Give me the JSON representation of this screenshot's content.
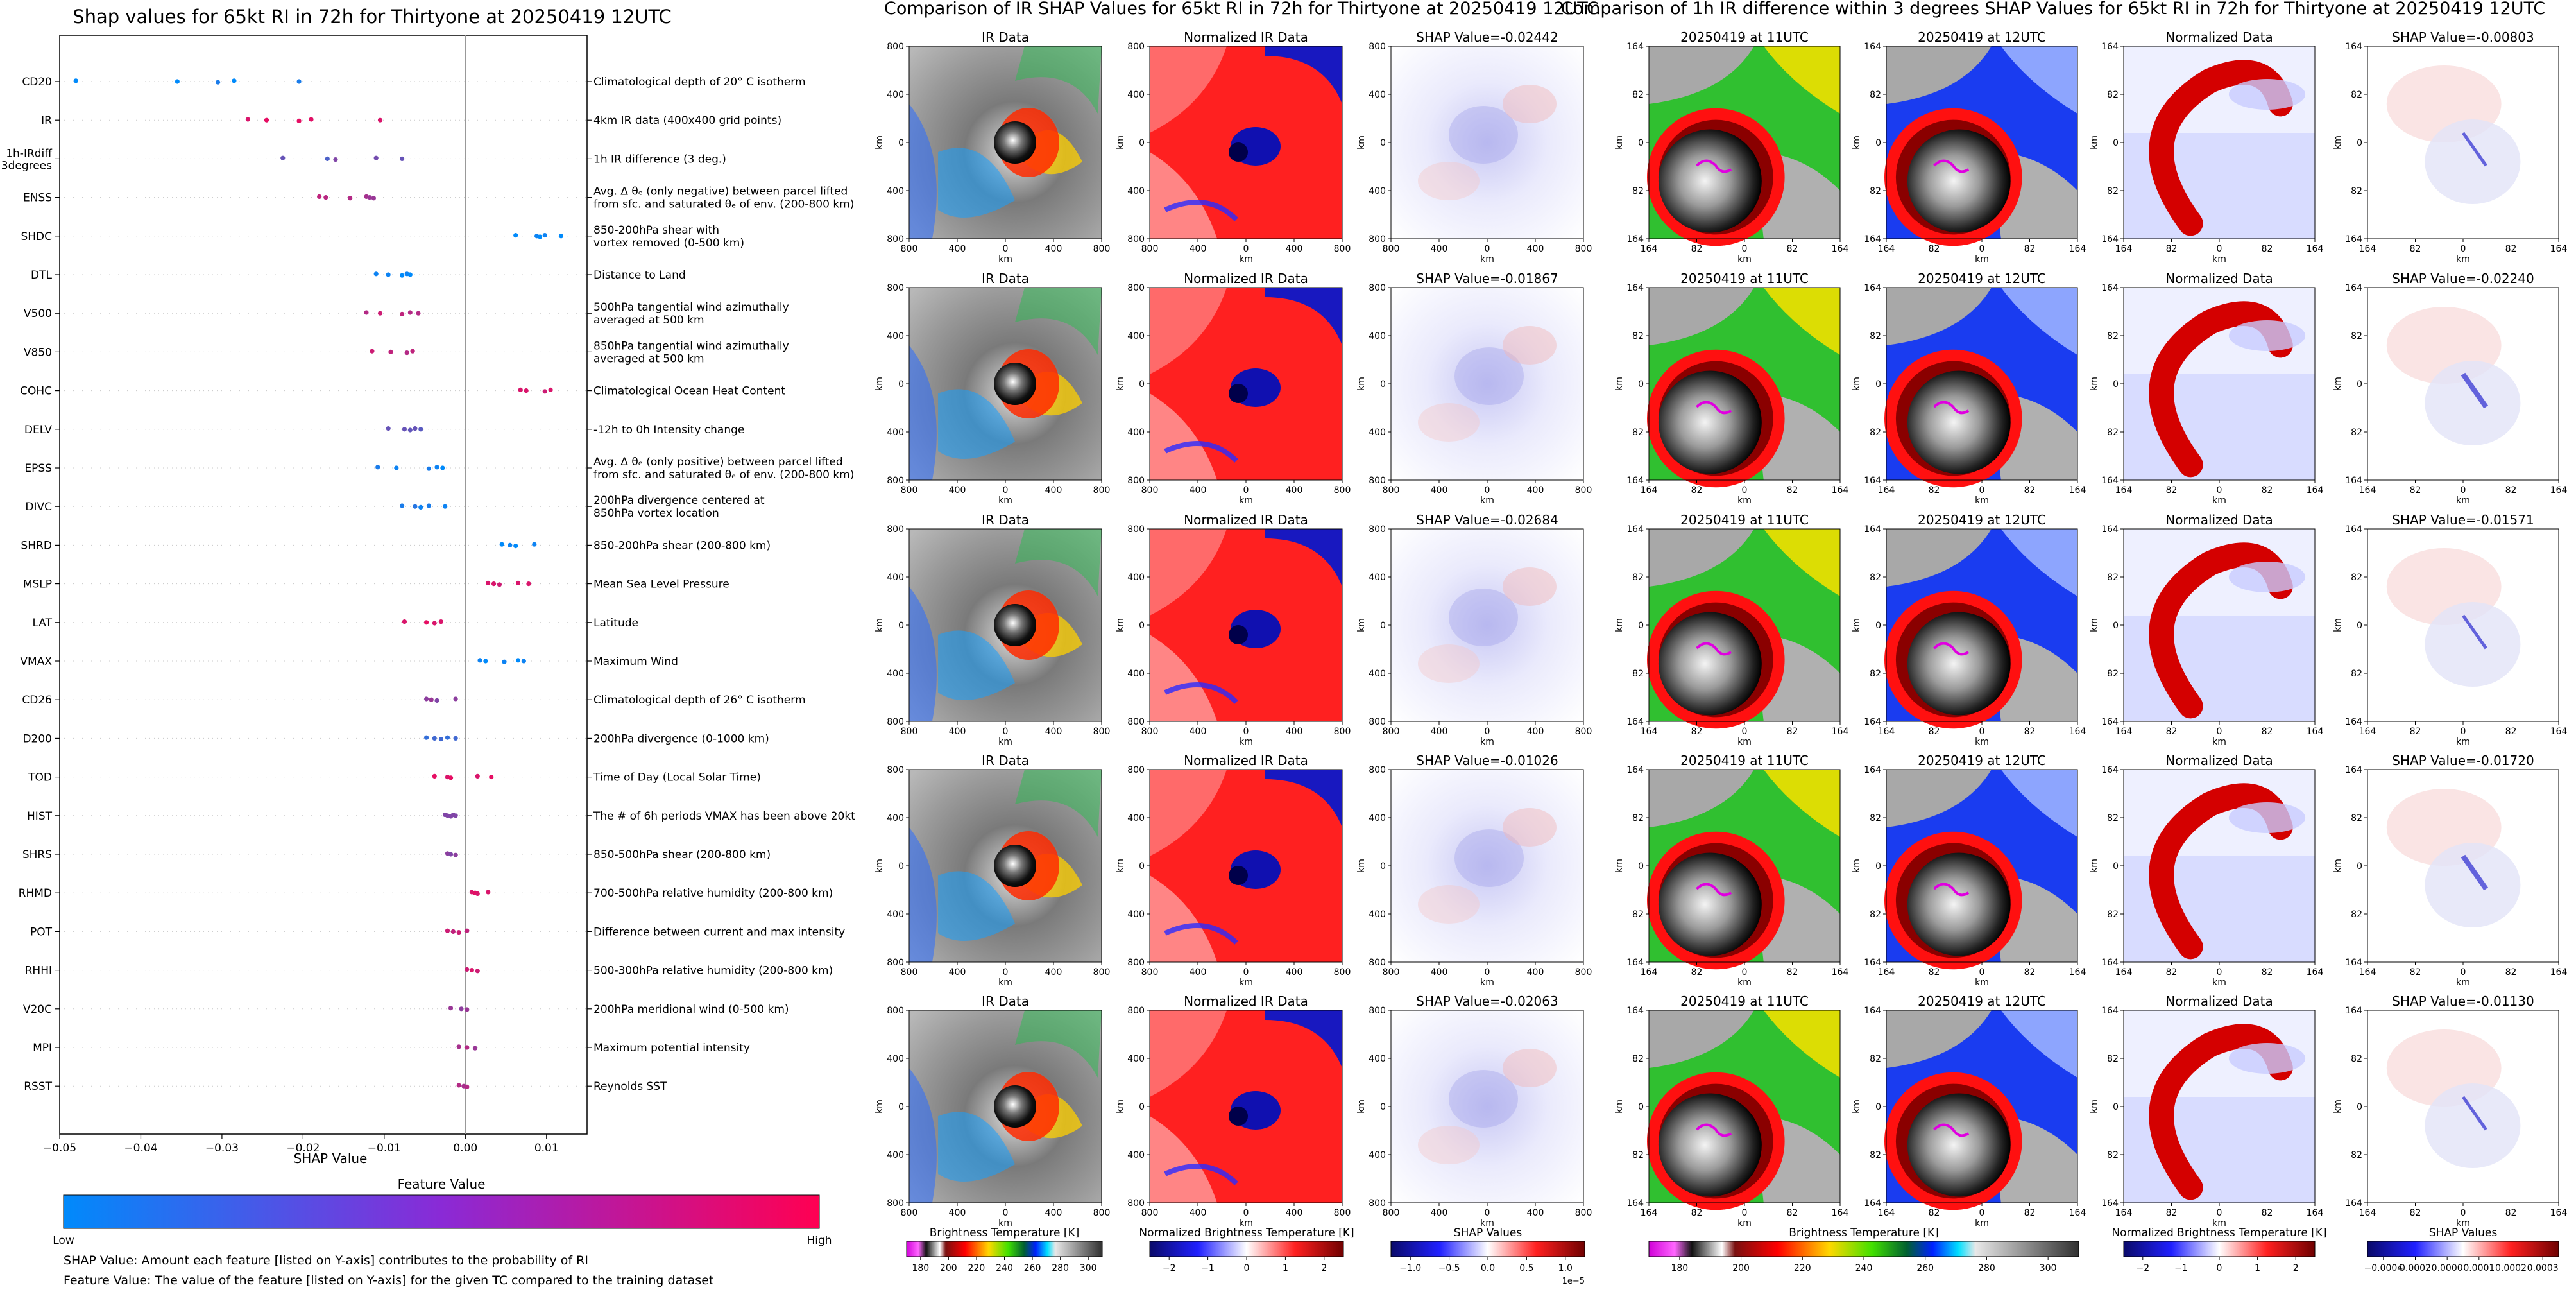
{
  "chart_data": [
    {
      "type": "scatter",
      "title": "Shap values for 65kt RI in 72h for Thirtyone at 20250419 12UTC",
      "xlabel": "SHAP Value",
      "xlim": [
        -0.05,
        0.015
      ],
      "xticks": [
        "−0.05",
        "−0.04",
        "−0.03",
        "−0.02",
        "−0.01",
        "0.00",
        "0.01"
      ],
      "xtick_values": [
        -0.05,
        -0.04,
        -0.03,
        -0.02,
        -0.01,
        0.0,
        0.01
      ],
      "features": [
        {
          "name": "CD20",
          "desc": [
            "Climatological depth of 20° C isotherm"
          ],
          "points": [
            [
              -0.048,
              0.0
            ],
            [
              -0.0355,
              0.0
            ],
            [
              -0.0305,
              0.1
            ],
            [
              -0.0285,
              0.0
            ],
            [
              -0.0205,
              0.1
            ]
          ]
        },
        {
          "name": "IR",
          "desc": [
            "4km IR data (400x400 grid points)"
          ],
          "points": [
            [
              -0.0268,
              0.85
            ],
            [
              -0.0245,
              0.9
            ],
            [
              -0.0205,
              0.9
            ],
            [
              -0.019,
              0.88
            ],
            [
              -0.0105,
              0.85
            ]
          ]
        },
        {
          "name": "1h-IRdiff 3degrees",
          "desc": [
            "1h IR difference (3 deg.)"
          ],
          "points": [
            [
              -0.0225,
              0.4
            ],
            [
              -0.017,
              0.3
            ],
            [
              -0.016,
              0.5
            ],
            [
              -0.011,
              0.45
            ],
            [
              -0.0078,
              0.4
            ]
          ]
        },
        {
          "name": "ENSS",
          "desc": [
            "Avg. Δ θₑ (only negative) between parcel lifted",
            "from sfc. and saturated θₑ of env. (200-800 km)"
          ],
          "points": [
            [
              -0.018,
              0.75
            ],
            [
              -0.0172,
              0.72
            ],
            [
              -0.0142,
              0.7
            ],
            [
              -0.0122,
              0.65
            ],
            [
              -0.0118,
              0.6
            ],
            [
              -0.0113,
              0.6
            ]
          ]
        },
        {
          "name": "SHDC",
          "desc": [
            "850-200hPa shear with",
            "vortex removed (0-500 km)"
          ],
          "points": [
            [
              0.0062,
              0.0
            ],
            [
              0.0088,
              0.05
            ],
            [
              0.0092,
              0.0
            ],
            [
              0.0098,
              0.05
            ],
            [
              0.0118,
              0.0
            ]
          ]
        },
        {
          "name": "DTL",
          "desc": [
            "Distance to Land"
          ],
          "points": [
            [
              -0.011,
              0.05
            ],
            [
              -0.0095,
              0.05
            ],
            [
              -0.0078,
              0.0
            ],
            [
              -0.0072,
              0.05
            ],
            [
              -0.0068,
              0.0
            ]
          ]
        },
        {
          "name": "V500",
          "desc": [
            "500hPa tangential wind azimuthally",
            "averaged at 500 km"
          ],
          "points": [
            [
              -0.0122,
              0.7
            ],
            [
              -0.0105,
              0.8
            ],
            [
              -0.0078,
              0.75
            ],
            [
              -0.0068,
              0.7
            ],
            [
              -0.0058,
              0.7
            ]
          ]
        },
        {
          "name": "V850",
          "desc": [
            "850hPa tangential wind azimuthally",
            "averaged at 500 km"
          ],
          "points": [
            [
              -0.0115,
              0.8
            ],
            [
              -0.0092,
              0.75
            ],
            [
              -0.0072,
              0.7
            ],
            [
              -0.0065,
              0.75
            ]
          ]
        },
        {
          "name": "COHC",
          "desc": [
            "Climatological Ocean Heat Content"
          ],
          "points": [
            [
              0.0068,
              0.85
            ],
            [
              0.0075,
              0.85
            ],
            [
              0.0098,
              0.8
            ],
            [
              0.0105,
              0.85
            ]
          ]
        },
        {
          "name": "DELV",
          "desc": [
            "-12h to 0h Intensity change"
          ],
          "points": [
            [
              -0.0095,
              0.4
            ],
            [
              -0.0075,
              0.4
            ],
            [
              -0.0068,
              0.38
            ],
            [
              -0.0062,
              0.4
            ],
            [
              -0.0055,
              0.35
            ]
          ]
        },
        {
          "name": "EPSS",
          "desc": [
            "Avg. Δ θₑ (only positive) between parcel lifted",
            "from sfc. and saturated θₑ of env. (200-800 km)"
          ],
          "points": [
            [
              -0.0108,
              0.1
            ],
            [
              -0.0085,
              0.05
            ],
            [
              -0.0045,
              0.1
            ],
            [
              -0.0035,
              0.05
            ],
            [
              -0.0028,
              0.0
            ]
          ]
        },
        {
          "name": "DIVC",
          "desc": [
            "200hPa divergence centered at",
            "850hPa vortex location"
          ],
          "points": [
            [
              -0.0078,
              0.1
            ],
            [
              -0.0062,
              0.15
            ],
            [
              -0.0055,
              0.05
            ],
            [
              -0.0045,
              0.1
            ],
            [
              -0.0025,
              0.05
            ]
          ]
        },
        {
          "name": "SHRD",
          "desc": [
            "850-200hPa shear (200-800 km)"
          ],
          "points": [
            [
              0.0045,
              0.0
            ],
            [
              0.0055,
              0.05
            ],
            [
              0.0062,
              0.0
            ],
            [
              0.0085,
              0.05
            ]
          ]
        },
        {
          "name": "MSLP",
          "desc": [
            "Mean Sea Level Pressure"
          ],
          "points": [
            [
              0.0028,
              0.85
            ],
            [
              0.0035,
              0.85
            ],
            [
              0.0042,
              0.8
            ],
            [
              0.0065,
              0.85
            ],
            [
              0.0078,
              0.85
            ]
          ]
        },
        {
          "name": "LAT",
          "desc": [
            "Latitude"
          ],
          "points": [
            [
              -0.0075,
              0.85
            ],
            [
              -0.0048,
              0.9
            ],
            [
              -0.0038,
              0.85
            ],
            [
              -0.003,
              0.85
            ]
          ]
        },
        {
          "name": "VMAX",
          "desc": [
            "Maximum Wind"
          ],
          "points": [
            [
              0.0018,
              0.05
            ],
            [
              0.0025,
              0.0
            ],
            [
              0.0048,
              0.05
            ],
            [
              0.0065,
              0.0
            ],
            [
              0.0072,
              0.05
            ]
          ]
        },
        {
          "name": "CD26",
          "desc": [
            "Climatological depth of 26° C isotherm"
          ],
          "points": [
            [
              -0.0048,
              0.55
            ],
            [
              -0.0042,
              0.6
            ],
            [
              -0.0035,
              0.5
            ],
            [
              -0.0012,
              0.55
            ]
          ]
        },
        {
          "name": "D200",
          "desc": [
            "200hPa divergence (0-1000 km)"
          ],
          "points": [
            [
              -0.0048,
              0.2
            ],
            [
              -0.0038,
              0.25
            ],
            [
              -0.003,
              0.25
            ],
            [
              -0.0022,
              0.2
            ],
            [
              -0.0012,
              0.25
            ]
          ]
        },
        {
          "name": "TOD",
          "desc": [
            "Time of Day (Local Solar Time)"
          ],
          "points": [
            [
              -0.0038,
              0.9
            ],
            [
              -0.0022,
              0.85
            ],
            [
              -0.0018,
              0.9
            ],
            [
              0.0015,
              0.85
            ],
            [
              0.0032,
              0.9
            ]
          ]
        },
        {
          "name": "HIST",
          "desc": [
            "The # of 6h periods VMAX has been above 20kt"
          ],
          "points": [
            [
              -0.0025,
              0.5
            ],
            [
              -0.0022,
              0.5
            ],
            [
              -0.0018,
              0.5
            ],
            [
              -0.0015,
              0.5
            ],
            [
              -0.0012,
              0.5
            ]
          ]
        },
        {
          "name": "SHRS",
          "desc": [
            "850-500hPa shear (200-800 km)"
          ],
          "points": [
            [
              -0.0022,
              0.55
            ],
            [
              -0.0018,
              0.5
            ],
            [
              -0.0012,
              0.55
            ]
          ]
        },
        {
          "name": "RHMD",
          "desc": [
            "700-500hPa relative humidity (200-800 km)"
          ],
          "points": [
            [
              0.0008,
              0.85
            ],
            [
              0.0012,
              0.9
            ],
            [
              0.0015,
              0.85
            ],
            [
              0.0028,
              0.85
            ]
          ]
        },
        {
          "name": "POT",
          "desc": [
            "Difference between current and max intensity"
          ],
          "points": [
            [
              -0.0022,
              0.8
            ],
            [
              -0.0015,
              0.75
            ],
            [
              -0.0008,
              0.8
            ],
            [
              0.0002,
              0.75
            ]
          ]
        },
        {
          "name": "RHHI",
          "desc": [
            "500-300hPa relative humidity (200-800 km)"
          ],
          "points": [
            [
              0.0002,
              0.8
            ],
            [
              0.0008,
              0.85
            ],
            [
              0.0015,
              0.8
            ]
          ]
        },
        {
          "name": "V20C",
          "desc": [
            "200hPa meridional wind (0-500 km)"
          ],
          "points": [
            [
              -0.0018,
              0.6
            ],
            [
              -0.0005,
              0.55
            ],
            [
              0.0002,
              0.6
            ]
          ]
        },
        {
          "name": "MPI",
          "desc": [
            "Maximum potential intensity"
          ],
          "points": [
            [
              -0.0008,
              0.65
            ],
            [
              0.0002,
              0.7
            ],
            [
              0.0012,
              0.6
            ]
          ]
        },
        {
          "name": "RSST",
          "desc": [
            "Reynolds SST"
          ],
          "points": [
            [
              -0.0008,
              0.7
            ],
            [
              -0.0002,
              0.65
            ],
            [
              0.0002,
              0.7
            ]
          ]
        }
      ],
      "colorbar": {
        "title": "Feature Value",
        "low": "Low",
        "high": "High",
        "colors": [
          "#008afb",
          "#ff0052"
        ]
      },
      "notes": [
        "SHAP Value: Amount each feature [listed on Y-axis] contributes to the probability of RI",
        "Feature Value: The value of the feature [listed on Y-axis] for the given TC compared to the training dataset"
      ]
    },
    {
      "type": "heatmap",
      "title": "Comparison of IR SHAP Values for 65kt RI in 72h for Thirtyone at 20250419 12UTC",
      "column_titles": [
        "IR Data",
        "Normalized IR Data"
      ],
      "shap_titles": [
        "SHAP Value=-0.02442",
        "SHAP Value=-0.01867",
        "SHAP Value=-0.02684",
        "SHAP Value=-0.01026",
        "SHAP Value=-0.02063"
      ],
      "axis_label": "km",
      "ticks": [
        "800",
        "400",
        "0",
        "400",
        "800"
      ],
      "xticks": [
        "800",
        "400",
        "0",
        "400",
        "800"
      ],
      "colorbars": [
        {
          "label": "Brightness Temperature [K]",
          "ticks": [
            "180",
            "200",
            "220",
            "240",
            "260",
            "280",
            "300"
          ]
        },
        {
          "label": "Normalized Brightness Temperature [K]",
          "ticks": [
            "−2",
            "−1",
            "0",
            "1",
            "2"
          ]
        },
        {
          "label": "SHAP Values",
          "ticks": [
            "−1.0",
            "−0.5",
            "0.0",
            "0.5",
            "1.0"
          ],
          "exponent": "1e−5"
        }
      ]
    },
    {
      "type": "heatmap",
      "title": "Comparison of 1h IR difference within 3 degrees SHAP Values for 65kt RI in 72h for Thirtyone at 20250419 12UTC",
      "column_titles": [
        "20250419 at 11UTC",
        "20250419 at 12UTC",
        "Normalized Data"
      ],
      "shap_titles": [
        "SHAP Value=-0.00803",
        "SHAP Value=-0.02240",
        "SHAP Value=-0.01571",
        "SHAP Value=-0.01720",
        "SHAP Value=-0.01130"
      ],
      "axis_label": "km",
      "ticks": [
        "164",
        "82",
        "0",
        "82",
        "164"
      ],
      "xticks": [
        "164",
        "82",
        "0",
        "82",
        "164"
      ],
      "colorbars": [
        {
          "label": "Brightness Temperature [K]",
          "ticks": [
            "180",
            "200",
            "220",
            "240",
            "260",
            "280",
            "300"
          ]
        },
        {
          "label": "Normalized Brightness Temperature [K]",
          "ticks": [
            "−2",
            "−1",
            "0",
            "1",
            "2"
          ]
        },
        {
          "label": "SHAP Values",
          "ticks": [
            "−0.0004",
            "0.0002",
            "0.0000",
            "0.0001",
            "0.0002",
            "0.0003"
          ]
        }
      ]
    }
  ]
}
